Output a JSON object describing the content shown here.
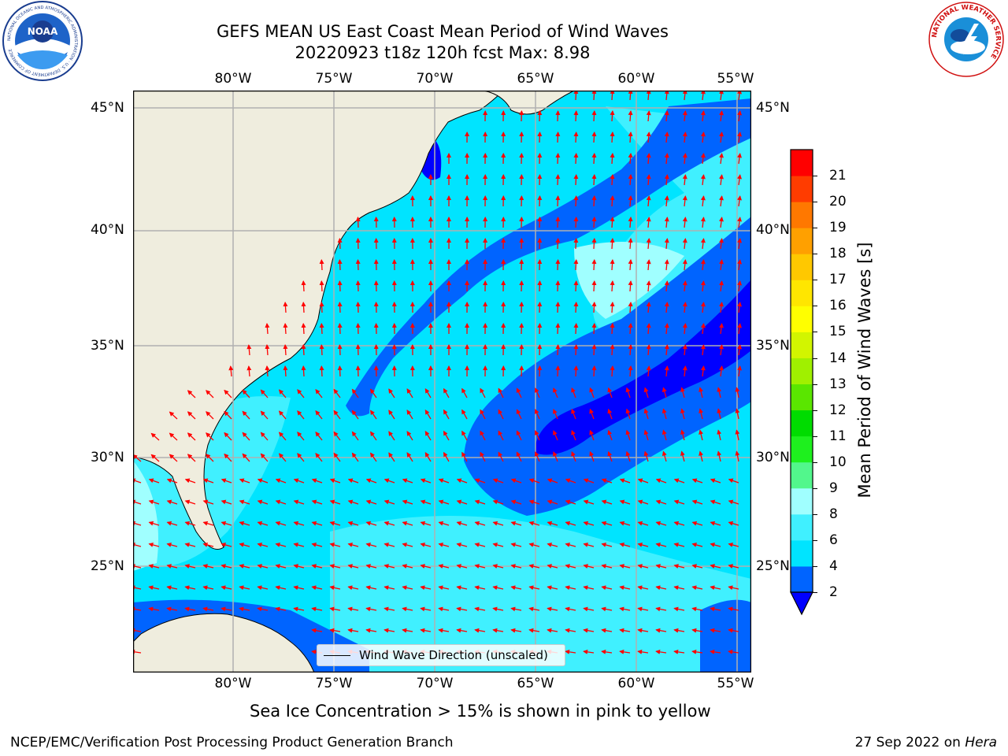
{
  "title": {
    "line1": "GEFS MEAN US East Coast Mean Period of Wind Waves",
    "line2": "20220923 t18z 120h fcst   Max: 8.98"
  },
  "logos": {
    "noaa": {
      "text": "NOAA",
      "ring_text": "NATIONAL OCEANIC AND ATMOSPHERIC ADMINISTRATION · U.S. DEPARTMENT OF COMMERCE"
    },
    "nws": {
      "ring_text": "NATIONAL WEATHER SERVICE"
    }
  },
  "map": {
    "lon_ticks": [
      "80°W",
      "75°W",
      "70°W",
      "65°W",
      "60°W",
      "55°W"
    ],
    "lat_ticks": [
      "45°N",
      "40°N",
      "35°N",
      "30°N",
      "25°N"
    ],
    "land_color": "#efedde",
    "arrow_color": "#ff0000",
    "grid_color": "#b0b0b0"
  },
  "legend": {
    "label": "Wind Wave Direction (unscaled)"
  },
  "colorbar": {
    "label": "Mean Period of Wind Waves [s]",
    "ticks": [
      "2",
      "4",
      "6",
      "8",
      "9",
      "10",
      "11",
      "12",
      "13",
      "14",
      "15",
      "16",
      "17",
      "18",
      "19",
      "20",
      "21"
    ],
    "colors": [
      "#0064ff",
      "#00e4ff",
      "#40f0ff",
      "#a0ffff",
      "#52f78c",
      "#1ef01e",
      "#00dc00",
      "#5ae600",
      "#a0f000",
      "#d2f500",
      "#ffff00",
      "#ffe600",
      "#ffc800",
      "#ffa000",
      "#ff7800",
      "#ff3c00",
      "#ff0000"
    ],
    "extend_color": "#0000ff"
  },
  "caption": "Sea Ice Concentration > 15% is shown in pink to yellow",
  "footer": {
    "left": "NCEP/EMC/Verification Post Processing Product Generation Branch",
    "date": "27 Sep 2022 on ",
    "machine": "Hera"
  }
}
